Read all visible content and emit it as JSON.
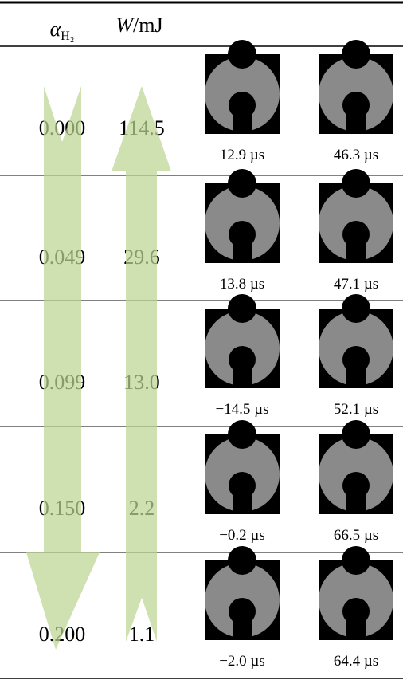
{
  "header": {
    "alpha_symbol": "α",
    "alpha_subscript": "H₂",
    "energy_symbol": "W",
    "energy_unit": "/mJ"
  },
  "rows": [
    {
      "alpha": "0.000",
      "energy": "114.5",
      "times": [
        "12.9 µs",
        "46.3 µs"
      ]
    },
    {
      "alpha": "0.049",
      "energy": "29.6",
      "times": [
        "13.8 µs",
        "47.1 µs"
      ]
    },
    {
      "alpha": "0.099",
      "energy": "13.0",
      "times": [
        "−14.5 µs",
        "52.1 µs"
      ]
    },
    {
      "alpha": "0.150",
      "energy": "2.2",
      "times": [
        "−0.2 µs",
        "66.5 µs"
      ]
    },
    {
      "alpha": "0.200",
      "energy": "1.1",
      "times": [
        "−2.0 µs",
        "64.4 µs"
      ]
    }
  ]
}
